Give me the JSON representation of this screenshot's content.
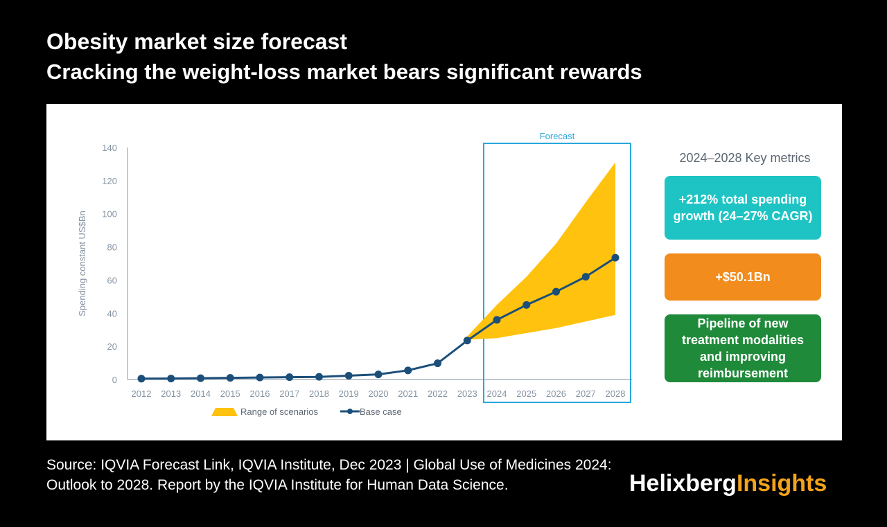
{
  "header": {
    "title": "Obesity market size forecast",
    "subtitle": "Cracking the weight-loss market bears significant rewards"
  },
  "chart_data": {
    "type": "line",
    "ylabel": "Spending constant US$Bn",
    "ylim": [
      0,
      140
    ],
    "yticks": [
      0,
      20,
      40,
      60,
      80,
      100,
      120,
      140
    ],
    "categories": [
      "2012",
      "2013",
      "2014",
      "2015",
      "2016",
      "2017",
      "2018",
      "2019",
      "2020",
      "2021",
      "2022",
      "2023",
      "2024",
      "2025",
      "2026",
      "2027",
      "2028"
    ],
    "series": [
      {
        "name": "Base case",
        "color": "#1b4f7a",
        "values": [
          0.5,
          0.6,
          0.8,
          1.0,
          1.2,
          1.4,
          1.6,
          2.3,
          3.1,
          5.5,
          9.8,
          23.5,
          36,
          45,
          53,
          62,
          73.5
        ]
      }
    ],
    "range": {
      "name": "Range of scenarios",
      "color": "#ffc20e",
      "categories": [
        "2023",
        "2024",
        "2025",
        "2026",
        "2027",
        "2028"
      ],
      "low": [
        24,
        25,
        28,
        31,
        35,
        39
      ],
      "high": [
        26,
        45,
        62,
        82,
        107,
        131
      ]
    },
    "forecast": {
      "label": "Forecast",
      "start": "2024",
      "end": "2028",
      "color": "#2aa7dc"
    },
    "legend_placement": "bottom",
    "grid": false
  },
  "metrics": {
    "title": "2024–2028 Key metrics",
    "cards": [
      {
        "text": "+212% total spending growth (24–27% CAGR)",
        "color": "#1ec4c4"
      },
      {
        "text": "+$50.1Bn",
        "color": "#f28c1c"
      },
      {
        "text": "Pipeline of new treatment modalities and improving reimbursement",
        "color": "#1f8a3a"
      }
    ]
  },
  "footer": {
    "source": "Source: IQVIA Forecast Link, IQVIA Institute, Dec 2023 | Global Use of Medicines 2024: Outlook to 2028. Report by the IQVIA Institute for Human Data Science.",
    "brand_part1": "Helixberg",
    "brand_part2": "Insights",
    "brand_color": "#f5a31a"
  }
}
